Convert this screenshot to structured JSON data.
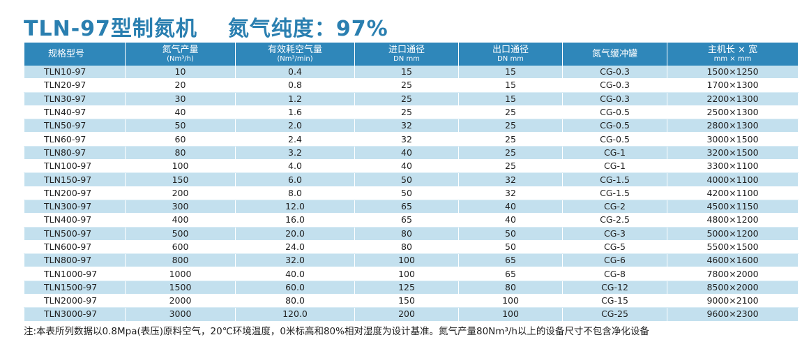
{
  "title": {
    "model": "TLN-97型制氮机",
    "purity": "氮气纯度：97%"
  },
  "headers": [
    {
      "main": "规格型号",
      "sub": ""
    },
    {
      "main": "氮气产量",
      "sub": "(Nm³/h)"
    },
    {
      "main": "有效耗空气量",
      "sub": "(Nm³/min)"
    },
    {
      "main": "进口通径",
      "sub": "DN mm"
    },
    {
      "main": "出口通径",
      "sub": "DN mm"
    },
    {
      "main": "氮气缓冲罐",
      "sub": ""
    },
    {
      "main": "主机长 × 宽",
      "sub": "mm × mm"
    }
  ],
  "rows": [
    [
      "TLN10-97",
      "10",
      "0.4",
      "15",
      "15",
      "CG-0.3",
      "1500×1250"
    ],
    [
      "TLN20-97",
      "20",
      "0.8",
      "25",
      "15",
      "CG-0.3",
      "1700×1300"
    ],
    [
      "TLN30-97",
      "30",
      "1.2",
      "25",
      "15",
      "CG-0.3",
      "2200×1300"
    ],
    [
      "TLN40-97",
      "40",
      "1.6",
      "25",
      "25",
      "CG-0.5",
      "2500×1300"
    ],
    [
      "TLN50-97",
      "50",
      "2.0",
      "32",
      "25",
      "CG-0.5",
      "2800×1300"
    ],
    [
      "TLN60-97",
      "60",
      "2.4",
      "32",
      "25",
      "CG-0.5",
      "3000×1500"
    ],
    [
      "TLN80-97",
      "80",
      "3.2",
      "40",
      "25",
      "CG-1",
      "3200×1500"
    ],
    [
      "TLN100-97",
      "100",
      "4.0",
      "40",
      "25",
      "CG-1",
      "3300×1100"
    ],
    [
      "TLN150-97",
      "150",
      "6.0",
      "50",
      "32",
      "CG-1.5",
      "4000×1100"
    ],
    [
      "TLN200-97",
      "200",
      "8.0",
      "50",
      "32",
      "CG-1.5",
      "4200×1100"
    ],
    [
      "TLN300-97",
      "300",
      "12.0",
      "65",
      "40",
      "CG-2",
      "4500×1150"
    ],
    [
      "TLN400-97",
      "400",
      "16.0",
      "65",
      "40",
      "CG-2.5",
      "4800×1200"
    ],
    [
      "TLN500-97",
      "500",
      "20.0",
      "80",
      "50",
      "CG-3",
      "5000×1200"
    ],
    [
      "TLN600-97",
      "600",
      "24.0",
      "80",
      "50",
      "CG-5",
      "5500×1500"
    ],
    [
      "TLN800-97",
      "800",
      "32.0",
      "100",
      "65",
      "CG-6",
      "4600×1600"
    ],
    [
      "TLN1000-97",
      "1000",
      "40.0",
      "100",
      "65",
      "CG-8",
      "7800×2000"
    ],
    [
      "TLN1500-97",
      "1500",
      "60.0",
      "125",
      "80",
      "CG-12",
      "8500×2000"
    ],
    [
      "TLN2000-97",
      "2000",
      "80.0",
      "150",
      "100",
      "CG-15",
      "9000×2100"
    ],
    [
      "TLN3000-97",
      "3000",
      "120.0",
      "200",
      "100",
      "CG-25",
      "9600×2300"
    ]
  ],
  "note": "注:本表所列数据以0.8Mpa(表压)原料空气，20℃环境温度，0米标高和80%相对湿度为设计基准。氮气产量80Nm³/h以上的设备尺寸不包含净化设备",
  "colors": {
    "title": "#2a7fb0",
    "header_bg": "#2f87ba",
    "row_blue": "#c3e0ee",
    "row_white": "#ffffff"
  }
}
